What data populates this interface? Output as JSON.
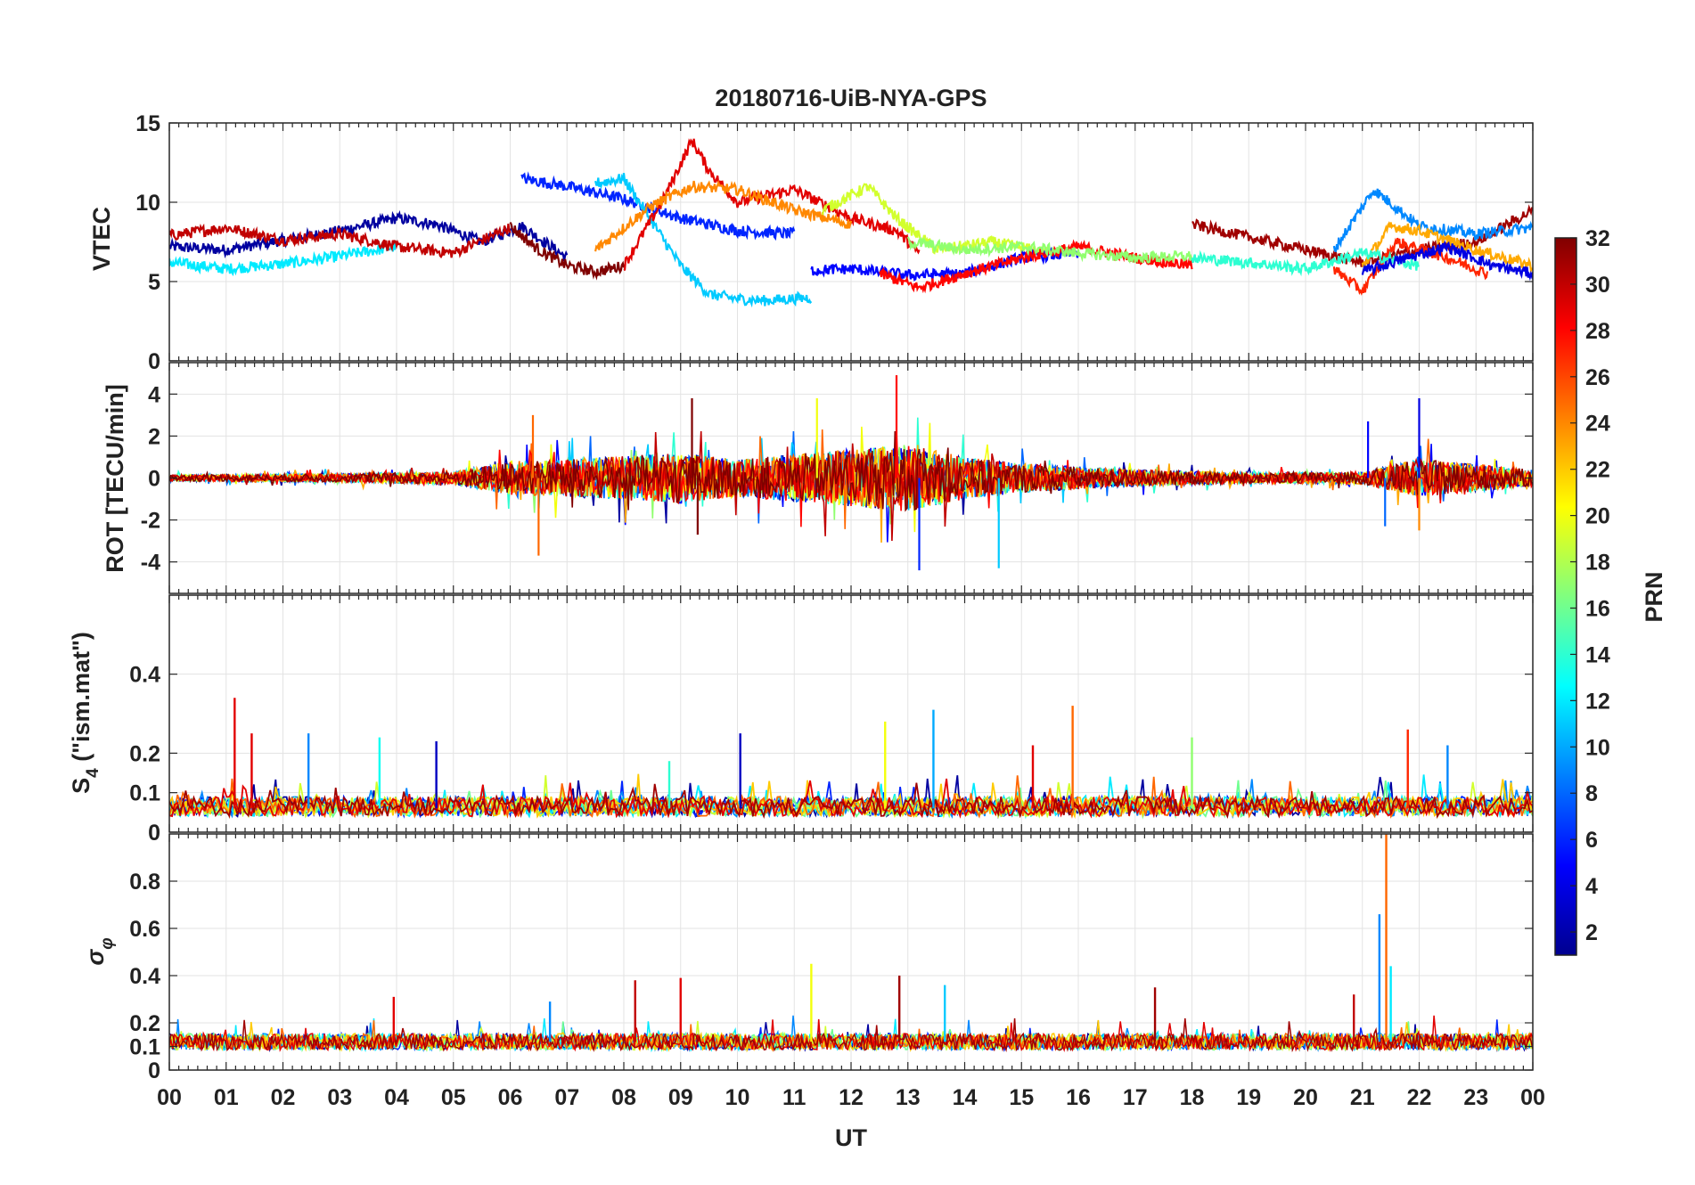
{
  "chart_data": {
    "title": "20180716-UiB-NYA-GPS",
    "type": "line",
    "xlabel": "UT",
    "x_tick_labels": [
      "00",
      "01",
      "02",
      "03",
      "04",
      "05",
      "06",
      "07",
      "08",
      "09",
      "10",
      "11",
      "12",
      "13",
      "14",
      "15",
      "16",
      "17",
      "18",
      "19",
      "20",
      "21",
      "22",
      "23",
      "00"
    ],
    "xlim_hours": [
      0,
      24
    ],
    "colorbar": {
      "label": "PRN",
      "range": [
        1,
        32
      ],
      "ticks": [
        2,
        4,
        6,
        8,
        10,
        12,
        14,
        16,
        18,
        20,
        22,
        24,
        26,
        28,
        30,
        32
      ]
    },
    "panels": [
      {
        "id": "vtec",
        "ylabel": "VTEC",
        "ylim": [
          0,
          15
        ],
        "yticks": [
          0,
          5,
          10,
          15
        ],
        "series": [
          {
            "prn": 2,
            "x": [
              0,
              1,
              2,
              3,
              4,
              4.7,
              5.5,
              6.2,
              7
            ],
            "y": [
              7.2,
              7.0,
              7.6,
              8.2,
              9.0,
              8.6,
              7.5,
              8.5,
              6.5
            ]
          },
          {
            "prn": 12,
            "x": [
              0,
              1,
              2,
              3,
              4
            ],
            "y": [
              6.2,
              5.8,
              6.1,
              6.6,
              7.2
            ]
          },
          {
            "prn": 30,
            "x": [
              0,
              1,
              2,
              3,
              4,
              5,
              6
            ],
            "y": [
              7.9,
              8.4,
              7.6,
              8.0,
              7.2,
              6.8,
              8.4
            ]
          },
          {
            "prn": 6,
            "x": [
              6.2,
              7,
              8,
              9,
              10,
              11
            ],
            "y": [
              11.5,
              11.0,
              10.2,
              9.0,
              8.2,
              8.0
            ]
          },
          {
            "prn": 11,
            "x": [
              7.5,
              8,
              9,
              9.5,
              10,
              10.5,
              11.3
            ],
            "y": [
              11.2,
              11.5,
              6.0,
              4.2,
              3.9,
              3.8,
              4.0
            ]
          },
          {
            "prn": 32,
            "x": [
              6,
              6.5,
              7,
              7.5,
              8
            ],
            "y": [
              8.5,
              7.0,
              6.0,
              5.6,
              6.0
            ]
          },
          {
            "prn": 29,
            "x": [
              8,
              8.7,
              9.2,
              9.5,
              10,
              11,
              12,
              12.8,
              13.2
            ],
            "y": [
              6.0,
              10.2,
              13.9,
              12.0,
              10.0,
              10.8,
              9.0,
              8.2,
              6.8
            ]
          },
          {
            "prn": 24,
            "x": [
              7.5,
              8.5,
              9.2,
              10,
              11,
              12
            ],
            "y": [
              7.0,
              9.8,
              11.0,
              10.8,
              9.5,
              8.6
            ]
          },
          {
            "prn": 19,
            "x": [
              11.5,
              12.3,
              12.8,
              13.5,
              14.5,
              15.5
            ],
            "y": [
              9.5,
              11.0,
              9.0,
              7.0,
              7.5,
              6.8
            ]
          },
          {
            "prn": 5,
            "x": [
              11.3,
              12,
              13,
              14,
              15,
              16
            ],
            "y": [
              5.7,
              5.8,
              5.4,
              5.5,
              6.5,
              6.8
            ]
          },
          {
            "prn": 28,
            "x": [
              12.5,
              13.2,
              14,
              15,
              16,
              17,
              18
            ],
            "y": [
              5.5,
              4.6,
              5.5,
              6.5,
              7.2,
              6.5,
              6.0
            ]
          },
          {
            "prn": 17,
            "x": [
              13,
              14,
              15,
              16,
              17,
              18
            ],
            "y": [
              7.5,
              7.0,
              7.2,
              6.8,
              6.5,
              6.6
            ]
          },
          {
            "prn": 31,
            "x": [
              18,
              19,
              20,
              21,
              22,
              23,
              24
            ],
            "y": [
              8.6,
              7.8,
              7.0,
              6.2,
              7.0,
              7.5,
              9.5
            ]
          },
          {
            "prn": 9,
            "x": [
              20.5,
              21.2,
              22,
              23,
              24
            ],
            "y": [
              7.0,
              10.8,
              8.5,
              8.0,
              8.4
            ]
          },
          {
            "prn": 23,
            "x": [
              21,
              21.5,
              22,
              23,
              24
            ],
            "y": [
              6.0,
              8.5,
              8.2,
              7.0,
              6.0
            ]
          },
          {
            "prn": 27,
            "x": [
              20.5,
              21,
              21.6,
              22.5,
              23.2
            ],
            "y": [
              5.8,
              4.4,
              7.5,
              6.5,
              5.5
            ]
          },
          {
            "prn": 14,
            "x": [
              18,
              19,
              20,
              21,
              22
            ],
            "y": [
              6.5,
              6.2,
              5.8,
              6.8,
              6.0
            ]
          },
          {
            "prn": 4,
            "x": [
              21,
              21.8,
              22.5,
              23.3,
              24
            ],
            "y": [
              5.6,
              6.5,
              7.2,
              6.0,
              5.5
            ]
          }
        ]
      },
      {
        "id": "rot",
        "ylabel": "ROT [TECU/min]",
        "ylim": [
          -5.5,
          5.5
        ],
        "yticks": [
          -4,
          -2,
          0,
          2,
          4
        ],
        "noise_profile_hours": [
          0,
          3,
          5,
          6,
          7,
          9,
          10,
          13,
          14,
          15,
          17,
          19,
          21,
          22,
          24
        ],
        "noise_profile_amp": [
          0.15,
          0.2,
          0.3,
          0.8,
          0.9,
          1.2,
          0.9,
          1.6,
          1.0,
          0.7,
          0.4,
          0.25,
          0.3,
          0.9,
          0.4
        ],
        "spikes": [
          {
            "x": 6.5,
            "y": -3.7,
            "prn": 25
          },
          {
            "x": 6.4,
            "y": 3.0,
            "prn": 25
          },
          {
            "x": 9.2,
            "y": 3.8,
            "prn": 32
          },
          {
            "x": 9.3,
            "y": -2.7,
            "prn": 32
          },
          {
            "x": 12.8,
            "y": 4.9,
            "prn": 28
          },
          {
            "x": 13.2,
            "y": -4.4,
            "prn": 6
          },
          {
            "x": 14.6,
            "y": -4.3,
            "prn": 11
          },
          {
            "x": 11.4,
            "y": 3.8,
            "prn": 20
          },
          {
            "x": 21.1,
            "y": 2.7,
            "prn": 5
          },
          {
            "x": 22.0,
            "y": 3.8,
            "prn": 4
          },
          {
            "x": 21.4,
            "y": -2.3,
            "prn": 8
          },
          {
            "x": 22.0,
            "y": -2.5,
            "prn": 24
          }
        ]
      },
      {
        "id": "s4",
        "ylabel": "S4 (\"ism.mat\")",
        "ylabel_main": "S",
        "ylabel_sub": "4",
        "ylabel_rest": " (\"ism.mat\")",
        "ylim": [
          0,
          0.6
        ],
        "yticks": [
          0,
          0.1,
          0.2,
          0.4
        ],
        "baseline": 0.06,
        "spikes": [
          {
            "x": 1.15,
            "y": 0.34,
            "prn": 29
          },
          {
            "x": 1.45,
            "y": 0.25,
            "prn": 29
          },
          {
            "x": 2.45,
            "y": 0.25,
            "prn": 9
          },
          {
            "x": 3.7,
            "y": 0.24,
            "prn": 13
          },
          {
            "x": 4.7,
            "y": 0.23,
            "prn": 3
          },
          {
            "x": 10.05,
            "y": 0.25,
            "prn": 3
          },
          {
            "x": 12.6,
            "y": 0.28,
            "prn": 20
          },
          {
            "x": 13.45,
            "y": 0.31,
            "prn": 10
          },
          {
            "x": 15.9,
            "y": 0.32,
            "prn": 25
          },
          {
            "x": 15.2,
            "y": 0.22,
            "prn": 29
          },
          {
            "x": 18.0,
            "y": 0.24,
            "prn": 17
          },
          {
            "x": 21.8,
            "y": 0.26,
            "prn": 27
          },
          {
            "x": 22.5,
            "y": 0.22,
            "prn": 9
          },
          {
            "x": 8.8,
            "y": 0.18,
            "prn": 14
          }
        ]
      },
      {
        "id": "sigma_phi",
        "ylabel": "σφ",
        "ylabel_main": "σ",
        "ylabel_sub": "φ",
        "ylim": [
          0,
          1
        ],
        "yticks": [
          0,
          0.1,
          0.2,
          0.4,
          0.6,
          0.8
        ],
        "baseline": 0.12,
        "spikes": [
          {
            "x": 3.95,
            "y": 0.31,
            "prn": 29
          },
          {
            "x": 6.7,
            "y": 0.29,
            "prn": 9
          },
          {
            "x": 8.2,
            "y": 0.38,
            "prn": 30
          },
          {
            "x": 9.0,
            "y": 0.39,
            "prn": 29
          },
          {
            "x": 11.3,
            "y": 0.45,
            "prn": 20
          },
          {
            "x": 12.85,
            "y": 0.4,
            "prn": 31
          },
          {
            "x": 13.65,
            "y": 0.36,
            "prn": 11
          },
          {
            "x": 17.35,
            "y": 0.35,
            "prn": 31
          },
          {
            "x": 20.85,
            "y": 0.32,
            "prn": 30
          },
          {
            "x": 21.3,
            "y": 0.66,
            "prn": 9
          },
          {
            "x": 21.42,
            "y": 1.0,
            "prn": 25
          },
          {
            "x": 21.5,
            "y": 0.44,
            "prn": 12
          }
        ]
      }
    ]
  }
}
